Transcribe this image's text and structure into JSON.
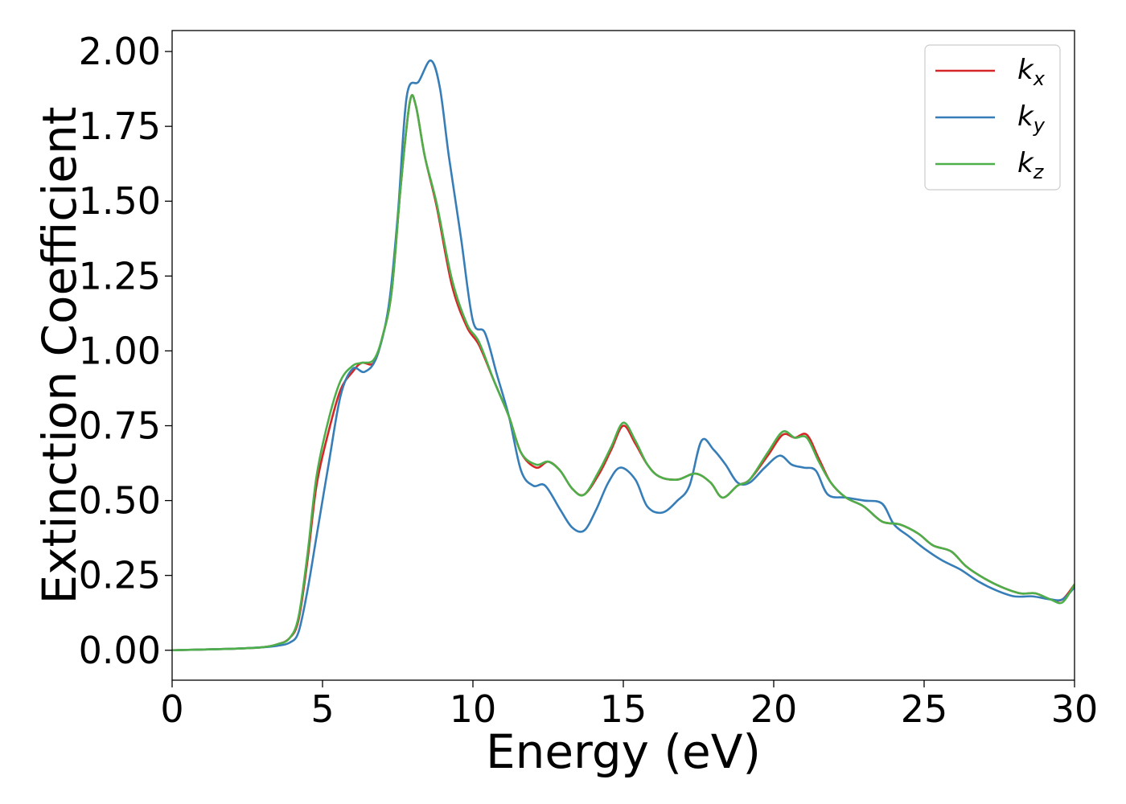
{
  "chart_data": {
    "type": "line",
    "title": "",
    "xlabel": "Energy (eV)",
    "ylabel": "Extinction Coefficient",
    "xlim": [
      0,
      30
    ],
    "ylim": [
      -0.1,
      2.07
    ],
    "xticks": [
      {
        "value": 0,
        "label": "0"
      },
      {
        "value": 5,
        "label": "5"
      },
      {
        "value": 10,
        "label": "10"
      },
      {
        "value": 15,
        "label": "15"
      },
      {
        "value": 20,
        "label": "20"
      },
      {
        "value": 25,
        "label": "25"
      },
      {
        "value": 30,
        "label": "30"
      }
    ],
    "yticks": [
      {
        "value": 0.0,
        "label": "0.00"
      },
      {
        "value": 0.25,
        "label": "0.25"
      },
      {
        "value": 0.5,
        "label": "0.50"
      },
      {
        "value": 0.75,
        "label": "0.75"
      },
      {
        "value": 1.0,
        "label": "1.00"
      },
      {
        "value": 1.25,
        "label": "1.25"
      },
      {
        "value": 1.5,
        "label": "1.50"
      },
      {
        "value": 1.75,
        "label": "1.75"
      },
      {
        "value": 2.0,
        "label": "2.00"
      }
    ],
    "grid": false,
    "legend_position": "top-right",
    "series": [
      {
        "name_base": "k",
        "name_sub": "x",
        "color": "#d62728",
        "points": [
          [
            0,
            0
          ],
          [
            2,
            0.005
          ],
          [
            3,
            0.01
          ],
          [
            3.5,
            0.02
          ],
          [
            3.9,
            0.04
          ],
          [
            4.2,
            0.1
          ],
          [
            4.5,
            0.3
          ],
          [
            4.8,
            0.55
          ],
          [
            5.2,
            0.73
          ],
          [
            5.6,
            0.87
          ],
          [
            6,
            0.93
          ],
          [
            6.3,
            0.96
          ],
          [
            6.7,
            0.96
          ],
          [
            7,
            1.05
          ],
          [
            7.3,
            1.2
          ],
          [
            7.6,
            1.55
          ],
          [
            7.9,
            1.83
          ],
          [
            8.1,
            1.82
          ],
          [
            8.4,
            1.65
          ],
          [
            8.8,
            1.48
          ],
          [
            9.3,
            1.22
          ],
          [
            9.8,
            1.08
          ],
          [
            10.2,
            1.02
          ],
          [
            10.7,
            0.9
          ],
          [
            11.2,
            0.78
          ],
          [
            11.6,
            0.66
          ],
          [
            12.1,
            0.61
          ],
          [
            12.5,
            0.63
          ],
          [
            12.9,
            0.6
          ],
          [
            13.3,
            0.54
          ],
          [
            13.7,
            0.52
          ],
          [
            14.2,
            0.59
          ],
          [
            14.6,
            0.67
          ],
          [
            15,
            0.75
          ],
          [
            15.4,
            0.69
          ],
          [
            15.8,
            0.62
          ],
          [
            16.2,
            0.58
          ],
          [
            16.8,
            0.57
          ],
          [
            17.4,
            0.59
          ],
          [
            17.9,
            0.56
          ],
          [
            18.3,
            0.51
          ],
          [
            18.8,
            0.55
          ],
          [
            19.2,
            0.57
          ],
          [
            19.8,
            0.65
          ],
          [
            20.3,
            0.72
          ],
          [
            20.7,
            0.71
          ],
          [
            21.1,
            0.72
          ],
          [
            21.5,
            0.64
          ],
          [
            21.9,
            0.56
          ],
          [
            22.4,
            0.51
          ],
          [
            23,
            0.48
          ],
          [
            23.6,
            0.43
          ],
          [
            24.2,
            0.42
          ],
          [
            24.8,
            0.39
          ],
          [
            25.3,
            0.35
          ],
          [
            25.9,
            0.33
          ],
          [
            26.4,
            0.28
          ],
          [
            27,
            0.24
          ],
          [
            27.6,
            0.21
          ],
          [
            28.2,
            0.19
          ],
          [
            28.7,
            0.19
          ],
          [
            29.2,
            0.17
          ],
          [
            29.6,
            0.17
          ],
          [
            30,
            0.22
          ]
        ]
      },
      {
        "name_base": "k",
        "name_sub": "y",
        "color": "#377eb8",
        "points": [
          [
            0,
            0
          ],
          [
            2,
            0.005
          ],
          [
            3,
            0.01
          ],
          [
            3.5,
            0.015
          ],
          [
            3.9,
            0.025
          ],
          [
            4.2,
            0.06
          ],
          [
            4.5,
            0.2
          ],
          [
            4.8,
            0.38
          ],
          [
            5.2,
            0.62
          ],
          [
            5.6,
            0.85
          ],
          [
            6,
            0.94
          ],
          [
            6.4,
            0.93
          ],
          [
            6.8,
            0.98
          ],
          [
            7.2,
            1.15
          ],
          [
            7.5,
            1.45
          ],
          [
            7.8,
            1.85
          ],
          [
            8.2,
            1.9
          ],
          [
            8.6,
            1.97
          ],
          [
            8.9,
            1.88
          ],
          [
            9.2,
            1.65
          ],
          [
            9.6,
            1.38
          ],
          [
            10,
            1.1
          ],
          [
            10.4,
            1.06
          ],
          [
            10.8,
            0.92
          ],
          [
            11.2,
            0.78
          ],
          [
            11.6,
            0.6
          ],
          [
            12,
            0.55
          ],
          [
            12.4,
            0.55
          ],
          [
            12.9,
            0.47
          ],
          [
            13.3,
            0.41
          ],
          [
            13.7,
            0.4
          ],
          [
            14.1,
            0.47
          ],
          [
            14.5,
            0.56
          ],
          [
            14.9,
            0.61
          ],
          [
            15.4,
            0.57
          ],
          [
            15.8,
            0.48
          ],
          [
            16.3,
            0.46
          ],
          [
            16.8,
            0.5
          ],
          [
            17.2,
            0.55
          ],
          [
            17.6,
            0.7
          ],
          [
            18,
            0.67
          ],
          [
            18.4,
            0.62
          ],
          [
            18.8,
            0.56
          ],
          [
            19.2,
            0.56
          ],
          [
            19.7,
            0.61
          ],
          [
            20.2,
            0.65
          ],
          [
            20.6,
            0.62
          ],
          [
            21,
            0.61
          ],
          [
            21.4,
            0.6
          ],
          [
            21.8,
            0.52
          ],
          [
            22.4,
            0.51
          ],
          [
            23,
            0.5
          ],
          [
            23.6,
            0.49
          ],
          [
            24,
            0.42
          ],
          [
            24.5,
            0.38
          ],
          [
            25,
            0.34
          ],
          [
            25.6,
            0.3
          ],
          [
            26.2,
            0.27
          ],
          [
            26.8,
            0.23
          ],
          [
            27.4,
            0.2
          ],
          [
            28,
            0.18
          ],
          [
            28.6,
            0.18
          ],
          [
            29.2,
            0.17
          ],
          [
            29.6,
            0.17
          ],
          [
            30,
            0.21
          ]
        ]
      },
      {
        "name_base": "k",
        "name_sub": "z",
        "color": "#4daf4a",
        "points": [
          [
            0,
            0
          ],
          [
            2,
            0.005
          ],
          [
            3,
            0.01
          ],
          [
            3.5,
            0.02
          ],
          [
            3.9,
            0.04
          ],
          [
            4.2,
            0.11
          ],
          [
            4.5,
            0.32
          ],
          [
            4.8,
            0.58
          ],
          [
            5.2,
            0.77
          ],
          [
            5.6,
            0.9
          ],
          [
            6,
            0.95
          ],
          [
            6.3,
            0.96
          ],
          [
            6.7,
            0.97
          ],
          [
            7,
            1.05
          ],
          [
            7.3,
            1.2
          ],
          [
            7.6,
            1.55
          ],
          [
            7.9,
            1.83
          ],
          [
            8.1,
            1.82
          ],
          [
            8.4,
            1.65
          ],
          [
            8.8,
            1.49
          ],
          [
            9.3,
            1.24
          ],
          [
            9.8,
            1.09
          ],
          [
            10.2,
            1.03
          ],
          [
            10.7,
            0.9
          ],
          [
            11.2,
            0.78
          ],
          [
            11.6,
            0.66
          ],
          [
            12.1,
            0.62
          ],
          [
            12.5,
            0.63
          ],
          [
            12.9,
            0.6
          ],
          [
            13.3,
            0.54
          ],
          [
            13.7,
            0.52
          ],
          [
            14.2,
            0.6
          ],
          [
            14.6,
            0.68
          ],
          [
            15,
            0.76
          ],
          [
            15.4,
            0.7
          ],
          [
            15.8,
            0.62
          ],
          [
            16.2,
            0.58
          ],
          [
            16.8,
            0.57
          ],
          [
            17.4,
            0.59
          ],
          [
            17.9,
            0.56
          ],
          [
            18.3,
            0.51
          ],
          [
            18.8,
            0.55
          ],
          [
            19.2,
            0.57
          ],
          [
            19.8,
            0.66
          ],
          [
            20.3,
            0.73
          ],
          [
            20.7,
            0.71
          ],
          [
            21.1,
            0.71
          ],
          [
            21.5,
            0.63
          ],
          [
            21.9,
            0.56
          ],
          [
            22.4,
            0.51
          ],
          [
            23,
            0.48
          ],
          [
            23.6,
            0.43
          ],
          [
            24.2,
            0.42
          ],
          [
            24.8,
            0.39
          ],
          [
            25.3,
            0.35
          ],
          [
            25.9,
            0.33
          ],
          [
            26.4,
            0.28
          ],
          [
            27,
            0.24
          ],
          [
            27.6,
            0.21
          ],
          [
            28.2,
            0.19
          ],
          [
            28.7,
            0.19
          ],
          [
            29.2,
            0.17
          ],
          [
            29.6,
            0.16
          ],
          [
            30,
            0.22
          ]
        ]
      }
    ]
  }
}
